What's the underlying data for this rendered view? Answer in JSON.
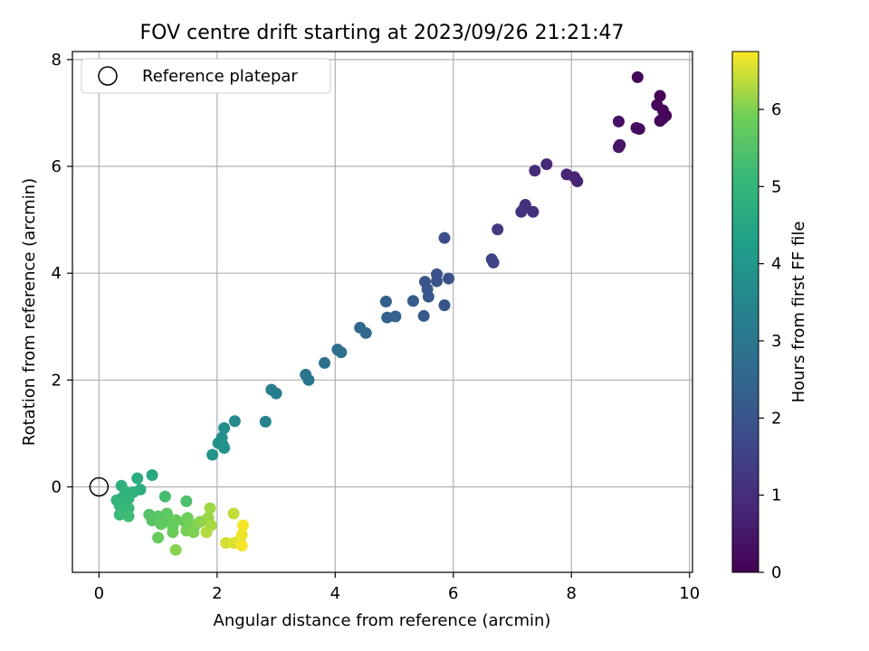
{
  "chart_data": {
    "type": "scatter",
    "title": "FOV centre drift starting at 2023/09/26 21:21:47",
    "xlabel": "Angular distance from reference (arcmin)",
    "ylabel": "Rotation from reference (arcmin)",
    "xlim": [
      -0.45,
      10.05
    ],
    "ylim": [
      -1.6,
      8.15
    ],
    "x_ticks": [
      0,
      2,
      4,
      6,
      8,
      10
    ],
    "y_ticks": [
      0,
      2,
      4,
      6,
      8
    ],
    "grid": true,
    "legend": {
      "placement": "top-left",
      "entries": [
        "Reference platepar"
      ]
    },
    "reference_point": {
      "x": 0,
      "y": 0,
      "label": "Reference platepar"
    },
    "colorbar": {
      "label": "Hours from first FF file",
      "colormap": "viridis",
      "range": [
        0,
        6.75
      ],
      "ticks": [
        0,
        1,
        2,
        3,
        4,
        5,
        6
      ]
    },
    "points": [
      {
        "x": 9.12,
        "y": 7.67,
        "c": 0.1
      },
      {
        "x": 9.5,
        "y": 7.32,
        "c": 0.05
      },
      {
        "x": 9.45,
        "y": 7.15,
        "c": 0.1
      },
      {
        "x": 9.55,
        "y": 7.05,
        "c": 0.15
      },
      {
        "x": 9.6,
        "y": 6.95,
        "c": 0.05
      },
      {
        "x": 9.5,
        "y": 6.85,
        "c": 0.1
      },
      {
        "x": 9.55,
        "y": 6.9,
        "c": 0.2
      },
      {
        "x": 9.1,
        "y": 6.72,
        "c": 0.3
      },
      {
        "x": 9.15,
        "y": 6.7,
        "c": 0.25
      },
      {
        "x": 8.8,
        "y": 6.84,
        "c": 0.35
      },
      {
        "x": 8.82,
        "y": 6.4,
        "c": 0.4
      },
      {
        "x": 8.8,
        "y": 6.36,
        "c": 0.45
      },
      {
        "x": 8.1,
        "y": 5.72,
        "c": 0.8
      },
      {
        "x": 8.05,
        "y": 5.8,
        "c": 0.75
      },
      {
        "x": 7.92,
        "y": 5.85,
        "c": 0.8
      },
      {
        "x": 7.58,
        "y": 6.04,
        "c": 0.9
      },
      {
        "x": 7.38,
        "y": 5.92,
        "c": 0.95
      },
      {
        "x": 7.35,
        "y": 5.15,
        "c": 1.1
      },
      {
        "x": 7.22,
        "y": 5.28,
        "c": 1.05
      },
      {
        "x": 7.2,
        "y": 5.22,
        "c": 1.1
      },
      {
        "x": 7.15,
        "y": 5.15,
        "c": 1.15
      },
      {
        "x": 6.75,
        "y": 4.82,
        "c": 1.3
      },
      {
        "x": 6.65,
        "y": 4.26,
        "c": 1.5
      },
      {
        "x": 6.68,
        "y": 4.2,
        "c": 1.55
      },
      {
        "x": 5.85,
        "y": 4.66,
        "c": 1.8
      },
      {
        "x": 5.72,
        "y": 3.98,
        "c": 1.9
      },
      {
        "x": 5.72,
        "y": 3.85,
        "c": 1.95
      },
      {
        "x": 5.92,
        "y": 3.9,
        "c": 1.85
      },
      {
        "x": 5.52,
        "y": 3.84,
        "c": 2.0
      },
      {
        "x": 5.56,
        "y": 3.7,
        "c": 2.05
      },
      {
        "x": 5.58,
        "y": 3.56,
        "c": 2.1
      },
      {
        "x": 5.85,
        "y": 3.4,
        "c": 2.0
      },
      {
        "x": 5.5,
        "y": 3.2,
        "c": 2.15
      },
      {
        "x": 5.32,
        "y": 3.48,
        "c": 2.2
      },
      {
        "x": 4.86,
        "y": 3.47,
        "c": 2.3
      },
      {
        "x": 4.88,
        "y": 3.17,
        "c": 2.35
      },
      {
        "x": 5.02,
        "y": 3.19,
        "c": 2.3
      },
      {
        "x": 4.42,
        "y": 2.98,
        "c": 2.5
      },
      {
        "x": 4.52,
        "y": 2.88,
        "c": 2.55
      },
      {
        "x": 4.04,
        "y": 2.57,
        "c": 2.7
      },
      {
        "x": 4.1,
        "y": 2.52,
        "c": 2.75
      },
      {
        "x": 3.82,
        "y": 2.32,
        "c": 2.8
      },
      {
        "x": 3.5,
        "y": 2.1,
        "c": 2.95
      },
      {
        "x": 3.55,
        "y": 2.0,
        "c": 3.0
      },
      {
        "x": 2.92,
        "y": 1.82,
        "c": 3.2
      },
      {
        "x": 3.0,
        "y": 1.75,
        "c": 3.25
      },
      {
        "x": 2.82,
        "y": 1.22,
        "c": 3.4
      },
      {
        "x": 2.3,
        "y": 1.23,
        "c": 3.6
      },
      {
        "x": 2.12,
        "y": 1.1,
        "c": 3.7
      },
      {
        "x": 2.08,
        "y": 0.92,
        "c": 3.75
      },
      {
        "x": 2.02,
        "y": 0.82,
        "c": 3.8
      },
      {
        "x": 2.1,
        "y": 0.78,
        "c": 3.85
      },
      {
        "x": 2.12,
        "y": 0.73,
        "c": 3.9
      },
      {
        "x": 1.92,
        "y": 0.6,
        "c": 3.95
      },
      {
        "x": 0.9,
        "y": 0.22,
        "c": 4.6
      },
      {
        "x": 0.65,
        "y": 0.16,
        "c": 4.7
      },
      {
        "x": 0.38,
        "y": 0.02,
        "c": 4.8
      },
      {
        "x": 0.7,
        "y": -0.05,
        "c": 4.75
      },
      {
        "x": 0.58,
        "y": -0.1,
        "c": 4.85
      },
      {
        "x": 0.45,
        "y": -0.1,
        "c": 4.9
      },
      {
        "x": 0.3,
        "y": -0.25,
        "c": 4.95
      },
      {
        "x": 0.4,
        "y": -0.2,
        "c": 4.9
      },
      {
        "x": 0.5,
        "y": -0.22,
        "c": 5.0
      },
      {
        "x": 0.45,
        "y": -0.3,
        "c": 5.0
      },
      {
        "x": 0.35,
        "y": -0.35,
        "c": 5.05
      },
      {
        "x": 0.5,
        "y": -0.4,
        "c": 5.1
      },
      {
        "x": 0.42,
        "y": -0.45,
        "c": 5.1
      },
      {
        "x": 0.35,
        "y": -0.52,
        "c": 5.15
      },
      {
        "x": 0.5,
        "y": -0.55,
        "c": 5.2
      },
      {
        "x": 1.12,
        "y": -0.18,
        "c": 5.3
      },
      {
        "x": 1.48,
        "y": -0.27,
        "c": 5.4
      },
      {
        "x": 0.85,
        "y": -0.52,
        "c": 5.5
      },
      {
        "x": 0.9,
        "y": -0.63,
        "c": 5.55
      },
      {
        "x": 1.0,
        "y": -0.55,
        "c": 5.6
      },
      {
        "x": 1.1,
        "y": -0.6,
        "c": 5.6
      },
      {
        "x": 1.15,
        "y": -0.5,
        "c": 5.65
      },
      {
        "x": 1.05,
        "y": -0.7,
        "c": 5.7
      },
      {
        "x": 1.2,
        "y": -0.65,
        "c": 5.7
      },
      {
        "x": 1.25,
        "y": -0.75,
        "c": 5.75
      },
      {
        "x": 1.3,
        "y": -0.62,
        "c": 5.8
      },
      {
        "x": 1.0,
        "y": -0.95,
        "c": 5.8
      },
      {
        "x": 1.25,
        "y": -0.85,
        "c": 5.85
      },
      {
        "x": 1.45,
        "y": -0.65,
        "c": 5.85
      },
      {
        "x": 1.5,
        "y": -0.58,
        "c": 5.9
      },
      {
        "x": 1.55,
        "y": -0.75,
        "c": 5.9
      },
      {
        "x": 1.48,
        "y": -0.82,
        "c": 5.95
      },
      {
        "x": 1.6,
        "y": -0.85,
        "c": 6.0
      },
      {
        "x": 1.65,
        "y": -0.7,
        "c": 6.0
      },
      {
        "x": 1.3,
        "y": -1.18,
        "c": 6.05
      },
      {
        "x": 1.72,
        "y": -0.65,
        "c": 6.1
      },
      {
        "x": 1.85,
        "y": -0.58,
        "c": 6.15
      },
      {
        "x": 1.88,
        "y": -0.4,
        "c": 6.2
      },
      {
        "x": 1.9,
        "y": -0.72,
        "c": 6.25
      },
      {
        "x": 1.82,
        "y": -0.85,
        "c": 6.3
      },
      {
        "x": 2.28,
        "y": -0.5,
        "c": 6.4
      },
      {
        "x": 2.15,
        "y": -1.05,
        "c": 6.5
      },
      {
        "x": 2.28,
        "y": -1.05,
        "c": 6.55
      },
      {
        "x": 2.38,
        "y": -1.0,
        "c": 6.6
      },
      {
        "x": 2.42,
        "y": -0.9,
        "c": 6.65
      },
      {
        "x": 2.44,
        "y": -0.72,
        "c": 6.7
      },
      {
        "x": 2.42,
        "y": -1.1,
        "c": 6.7
      }
    ]
  }
}
